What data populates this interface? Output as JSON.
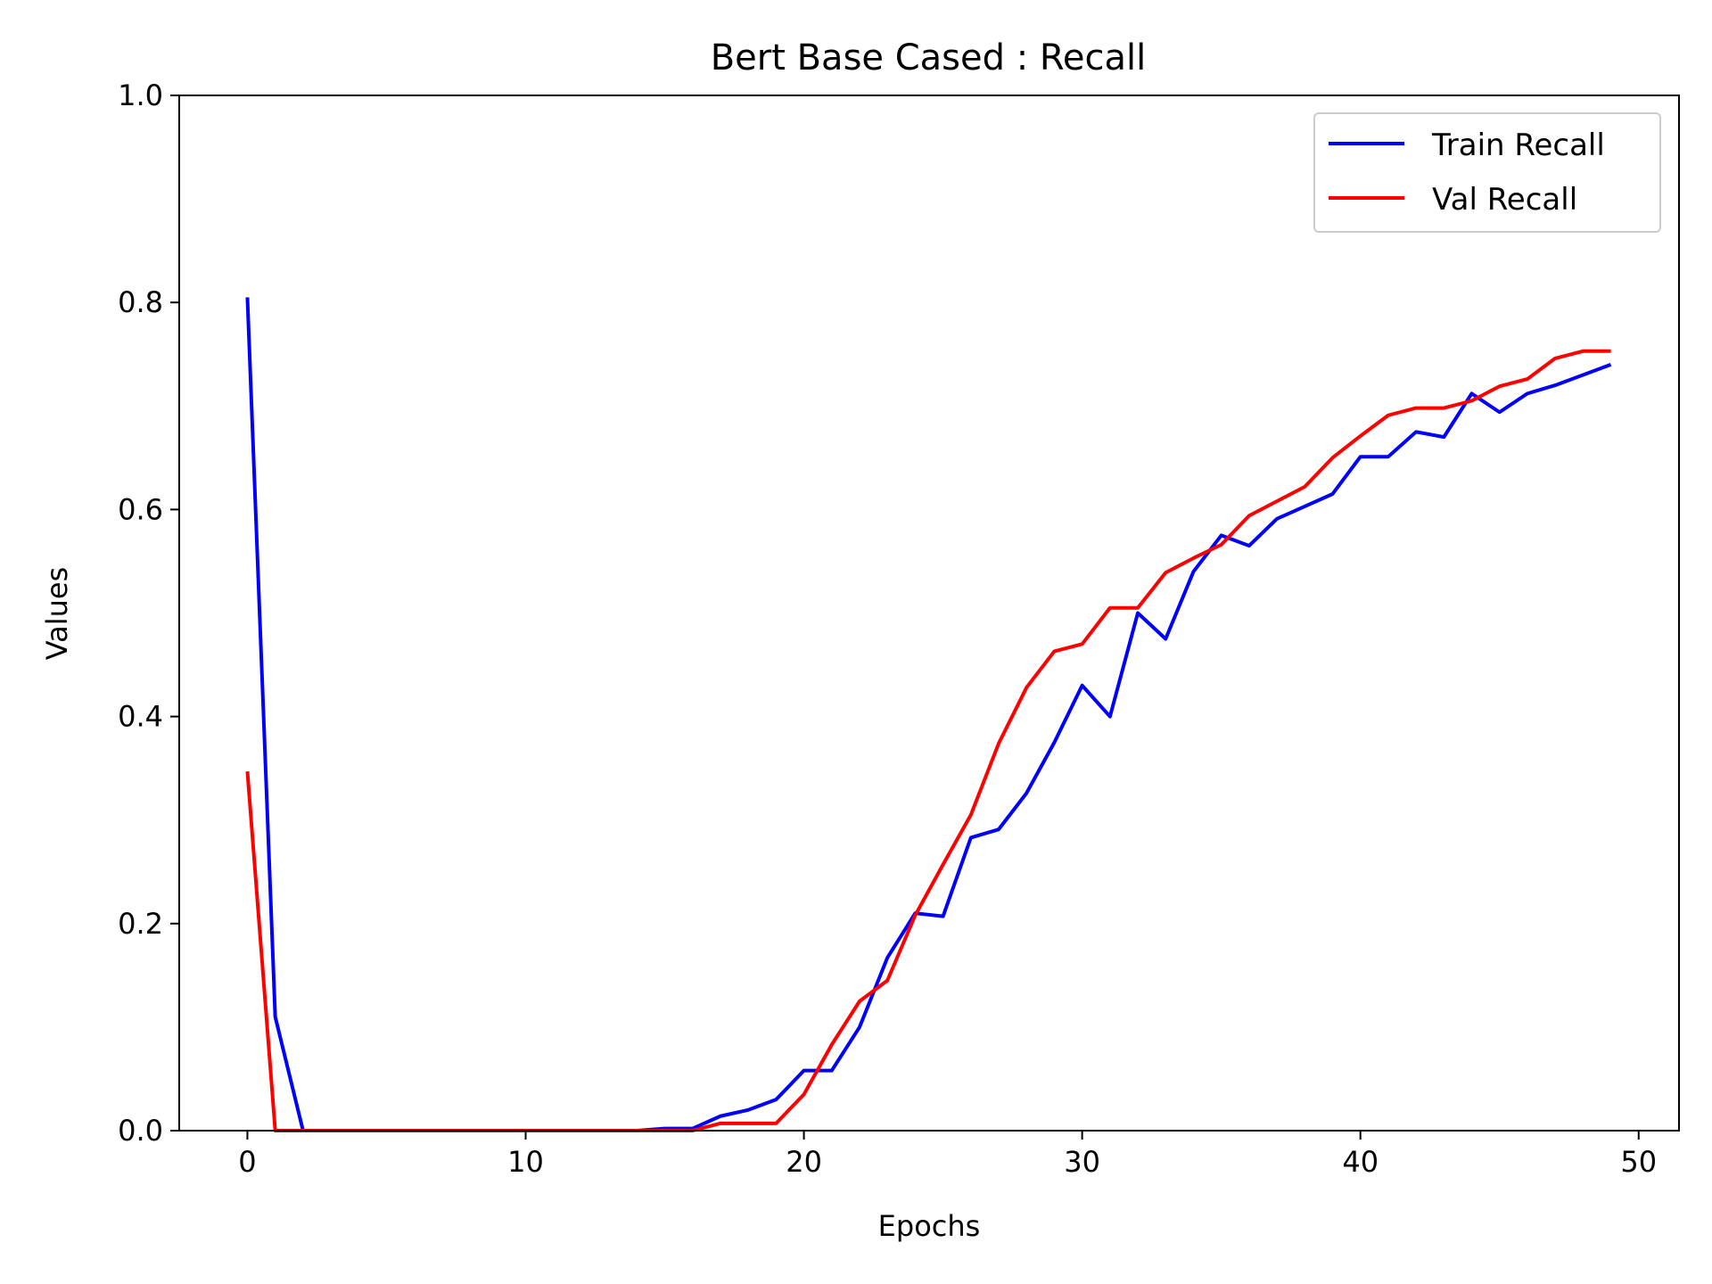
{
  "chart_data": {
    "type": "line",
    "title": "Bert Base Cased : Recall",
    "xlabel": "Epochs",
    "ylabel": "Values",
    "xlim": [
      -2.45,
      51.45
    ],
    "ylim": [
      0.0,
      1.0
    ],
    "xticks": [
      0,
      10,
      20,
      30,
      40,
      50
    ],
    "yticks": [
      0.0,
      0.2,
      0.4,
      0.6,
      0.8,
      1.0
    ],
    "xtick_labels": [
      "0",
      "10",
      "20",
      "30",
      "40",
      "50"
    ],
    "ytick_labels": [
      "0.0",
      "0.2",
      "0.4",
      "0.6",
      "0.8",
      "1.0"
    ],
    "grid": false,
    "legend_position": "upper right",
    "x": [
      0,
      1,
      2,
      3,
      4,
      5,
      6,
      7,
      8,
      9,
      10,
      11,
      12,
      13,
      14,
      15,
      16,
      17,
      18,
      19,
      20,
      21,
      22,
      23,
      24,
      25,
      26,
      27,
      28,
      29,
      30,
      31,
      32,
      33,
      34,
      35,
      36,
      37,
      38,
      39,
      40,
      41,
      42,
      43,
      44,
      45,
      46,
      47,
      48,
      49
    ],
    "series": [
      {
        "name": "Train Recall",
        "color": "#0000ff",
        "values": [
          0.805,
          0.11,
          0.0,
          0.0,
          0.0,
          0.0,
          0.0,
          0.0,
          0.0,
          0.0,
          0.0,
          0.0,
          0.0,
          0.0,
          0.0,
          0.002,
          0.002,
          0.014,
          0.02,
          0.03,
          0.058,
          0.058,
          0.1,
          0.167,
          0.21,
          0.207,
          0.283,
          0.291,
          0.326,
          0.375,
          0.43,
          0.4,
          0.5,
          0.475,
          0.54,
          0.575,
          0.565,
          0.591,
          0.603,
          0.615,
          0.651,
          0.651,
          0.675,
          0.67,
          0.712,
          0.694,
          0.712,
          0.72,
          0.73,
          0.74
        ]
      },
      {
        "name": "Val Recall",
        "color": "#ff0000",
        "values": [
          0.347,
          0.0,
          0.0,
          0.0,
          0.0,
          0.0,
          0.0,
          0.0,
          0.0,
          0.0,
          0.0,
          0.0,
          0.0,
          0.0,
          0.0,
          0.0,
          0.0,
          0.007,
          0.007,
          0.007,
          0.035,
          0.083,
          0.125,
          0.145,
          0.208,
          0.257,
          0.305,
          0.374,
          0.428,
          0.463,
          0.47,
          0.505,
          0.505,
          0.539,
          0.553,
          0.566,
          0.594,
          0.608,
          0.622,
          0.65,
          0.671,
          0.691,
          0.698,
          0.698,
          0.705,
          0.719,
          0.726,
          0.746,
          0.753,
          0.753
        ]
      }
    ]
  }
}
